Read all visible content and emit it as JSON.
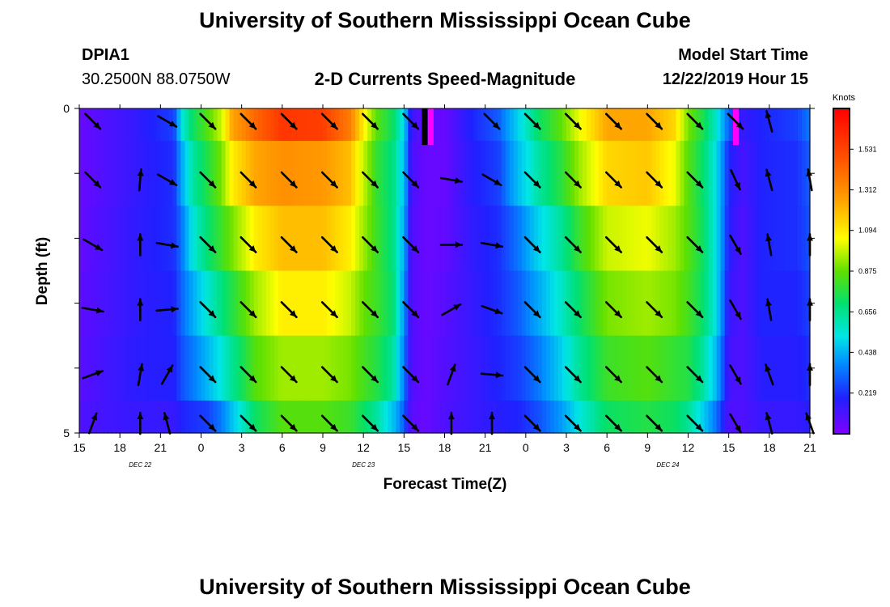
{
  "header": {
    "title": "University of Southern Mississippi Ocean Cube",
    "station_id": "DPIA1",
    "station_coords": "30.2500N 88.0750W",
    "product": "2-D Currents Speed-Magnitude",
    "model_start_label": "Model Start Time",
    "model_start_value": "12/22/2019 Hour 15"
  },
  "footer": {
    "title": "University of Southern Mississippi Ocean Cube"
  },
  "chart_data": {
    "type": "heatmap",
    "title": "2-D Currents Speed-Magnitude",
    "xlabel": "Forecast Time(Z)",
    "ylabel": "Depth (ft)",
    "x_tick_labels": [
      "15",
      "18",
      "21",
      "0",
      "3",
      "6",
      "9",
      "12",
      "15",
      "18",
      "21",
      "0",
      "3",
      "6",
      "9",
      "12",
      "15",
      "18",
      "21"
    ],
    "x_hours": [
      0,
      3,
      6,
      9,
      12,
      15,
      18,
      21,
      24,
      27,
      30,
      33,
      36,
      39,
      42,
      45,
      48,
      51,
      54
    ],
    "date_labels": [
      {
        "text": "DEC  22",
        "hour": 4.5
      },
      {
        "text": "DEC  23",
        "hour": 21
      },
      {
        "text": "DEC  24",
        "hour": 43.5
      }
    ],
    "y_tick_labels": [
      "0",
      "5"
    ],
    "depth_range": [
      0,
      5
    ],
    "depth_levels": 5,
    "colorbar": {
      "title": "Knots",
      "range": [
        0,
        1.75
      ],
      "tick_values": [
        "1.531",
        "1.312",
        "1.094",
        "0.875",
        "0.656",
        "0.438",
        "0.219"
      ],
      "colors": [
        "#8000ff",
        "#2020ff",
        "#0090ff",
        "#00e6e6",
        "#00e070",
        "#60e000",
        "#ffff00",
        "#ffa000",
        "#ff5000",
        "#ff0000"
      ]
    },
    "speed_columns": [
      {
        "hour": 0.0,
        "v": [
          0.05,
          0.05,
          0.06,
          0.07,
          0.08,
          0.1
        ]
      },
      {
        "hour": 4.0,
        "v": [
          0.15,
          0.15,
          0.16,
          0.16,
          0.17,
          0.15
        ]
      },
      {
        "hour": 7.0,
        "v": [
          0.25,
          0.22,
          0.22,
          0.2,
          0.19,
          0.15
        ]
      },
      {
        "hour": 7.6,
        "v": [
          0.6,
          0.45,
          0.35,
          0.32,
          0.28,
          0.2
        ]
      },
      {
        "hour": 8.4,
        "v": [
          0.8,
          0.7,
          0.6,
          0.45,
          0.35,
          0.22
        ]
      },
      {
        "hour": 9.5,
        "v": [
          0.95,
          0.85,
          0.78,
          0.62,
          0.48,
          0.25
        ]
      },
      {
        "hour": 10.5,
        "v": [
          1.1,
          1.0,
          0.9,
          0.75,
          0.6,
          0.35
        ]
      },
      {
        "hour": 11.3,
        "v": [
          1.35,
          1.2,
          1.0,
          0.85,
          0.72,
          0.5
        ]
      },
      {
        "hour": 13.0,
        "v": [
          1.5,
          1.35,
          1.2,
          1.05,
          0.95,
          0.8
        ]
      },
      {
        "hour": 15.0,
        "v": [
          1.62,
          1.4,
          1.3,
          1.2,
          1.05,
          0.95
        ]
      },
      {
        "hour": 18.0,
        "v": [
          1.6,
          1.38,
          1.3,
          1.2,
          1.05,
          0.95
        ]
      },
      {
        "hour": 20.0,
        "v": [
          1.45,
          1.3,
          1.2,
          1.1,
          1.0,
          0.9
        ]
      },
      {
        "hour": 21.0,
        "v": [
          1.2,
          1.1,
          1.05,
          0.98,
          0.92,
          0.8
        ]
      },
      {
        "hour": 22.0,
        "v": [
          0.95,
          0.88,
          0.9,
          0.9,
          0.85,
          0.7
        ]
      },
      {
        "hour": 23.2,
        "v": [
          0.8,
          0.75,
          0.75,
          0.78,
          0.7,
          0.5
        ]
      },
      {
        "hour": 24.0,
        "v": [
          0.55,
          0.5,
          0.45,
          0.4,
          0.35,
          0.3
        ]
      },
      {
        "hour": 24.5,
        "v": [
          0.15,
          0.12,
          0.1,
          0.1,
          0.1,
          0.08
        ]
      },
      {
        "hour": 25.5,
        "v": [
          0.05,
          0.05,
          0.05,
          0.05,
          0.05,
          0.05
        ]
      },
      {
        "hour": 27.0,
        "v": [
          0.05,
          0.05,
          0.06,
          0.08,
          0.09,
          0.1
        ]
      },
      {
        "hour": 29.0,
        "v": [
          0.2,
          0.18,
          0.16,
          0.15,
          0.14,
          0.14
        ]
      },
      {
        "hour": 31.0,
        "v": [
          0.3,
          0.25,
          0.22,
          0.22,
          0.2,
          0.18
        ]
      },
      {
        "hour": 32.5,
        "v": [
          0.55,
          0.5,
          0.35,
          0.3,
          0.25,
          0.2
        ]
      },
      {
        "hour": 34.0,
        "v": [
          0.8,
          0.7,
          0.55,
          0.45,
          0.35,
          0.28
        ]
      },
      {
        "hour": 35.5,
        "v": [
          0.95,
          0.85,
          0.7,
          0.62,
          0.52,
          0.4
        ]
      },
      {
        "hour": 37.0,
        "v": [
          1.15,
          1.05,
          0.9,
          0.8,
          0.72,
          0.6
        ]
      },
      {
        "hour": 39.0,
        "v": [
          1.35,
          1.25,
          1.1,
          1.0,
          0.9,
          0.8
        ]
      },
      {
        "hour": 42.0,
        "v": [
          1.35,
          1.28,
          1.15,
          1.05,
          0.95,
          0.85
        ]
      },
      {
        "hour": 44.0,
        "v": [
          1.25,
          1.15,
          1.05,
          1.0,
          0.88,
          0.8
        ]
      },
      {
        "hour": 45.0,
        "v": [
          1.0,
          0.95,
          0.95,
          0.92,
          0.85,
          0.72
        ]
      },
      {
        "hour": 46.0,
        "v": [
          0.85,
          0.8,
          0.82,
          0.8,
          0.72,
          0.55
        ]
      },
      {
        "hour": 47.0,
        "v": [
          0.65,
          0.6,
          0.6,
          0.6,
          0.5,
          0.35
        ]
      },
      {
        "hour": 48.0,
        "v": [
          0.3,
          0.2,
          0.18,
          0.15,
          0.12,
          0.1
        ]
      },
      {
        "hour": 49.0,
        "v": [
          0.15,
          0.12,
          0.1,
          0.1,
          0.1,
          0.1
        ]
      },
      {
        "hour": 50.5,
        "v": [
          0.2,
          0.2,
          0.2,
          0.2,
          0.18,
          0.15
        ]
      },
      {
        "hour": 53.0,
        "v": [
          0.25,
          0.22,
          0.22,
          0.2,
          0.18,
          0.15
        ]
      },
      {
        "hour": 54.0,
        "v": [
          0.35,
          0.3,
          0.28,
          0.25,
          0.22,
          0.18
        ]
      }
    ],
    "missing_markers": [
      {
        "hour": 25.5,
        "depth_to": 0.5,
        "color": "#000000"
      },
      {
        "hour": 25.95,
        "depth_to": 0.5,
        "color": "#ff00ff"
      },
      {
        "hour": 48.5,
        "depth_to": 0.5,
        "color": "#ff00ff"
      }
    ],
    "vector_depths": [
      0.2,
      1.1,
      2.1,
      3.1,
      4.1,
      4.85
    ],
    "vectors": [
      {
        "hour": 1.0,
        "dirs": [
          135,
          135,
          120,
          100,
          70,
          20
        ]
      },
      {
        "hour": 3.0,
        "dirs": null
      },
      {
        "hour": 4.5,
        "dirs": [
          null,
          5,
          0,
          0,
          10,
          0
        ]
      },
      {
        "hour": 6.5,
        "dirs": [
          120,
          120,
          100,
          85,
          30,
          -15
        ]
      },
      {
        "hour": 9.5,
        "dirs": [
          135,
          135,
          135,
          135,
          135,
          135
        ]
      },
      {
        "hour": 12.5,
        "dirs": [
          135,
          135,
          135,
          135,
          135,
          135
        ]
      },
      {
        "hour": 15.5,
        "dirs": [
          135,
          135,
          135,
          135,
          135,
          135
        ]
      },
      {
        "hour": 18.5,
        "dirs": [
          135,
          135,
          135,
          135,
          135,
          135
        ]
      },
      {
        "hour": 21.5,
        "dirs": [
          135,
          135,
          135,
          135,
          135,
          135
        ]
      },
      {
        "hour": 24.5,
        "dirs": [
          135,
          135,
          135,
          135,
          135,
          135
        ]
      },
      {
        "hour": 27.5,
        "dirs": [
          null,
          100,
          90,
          60,
          20,
          0
        ]
      },
      {
        "hour": 30.5,
        "dirs": [
          135,
          120,
          100,
          110,
          95,
          0
        ]
      },
      {
        "hour": 33.5,
        "dirs": [
          135,
          135,
          135,
          135,
          135,
          135
        ]
      },
      {
        "hour": 36.5,
        "dirs": [
          135,
          135,
          135,
          135,
          135,
          135
        ]
      },
      {
        "hour": 39.5,
        "dirs": [
          135,
          135,
          135,
          135,
          135,
          135
        ]
      },
      {
        "hour": 42.5,
        "dirs": [
          135,
          135,
          135,
          135,
          135,
          135
        ]
      },
      {
        "hour": 45.5,
        "dirs": [
          135,
          135,
          135,
          135,
          135,
          135
        ]
      },
      {
        "hour": 48.5,
        "dirs": [
          135,
          155,
          150,
          150,
          150,
          150
        ]
      },
      {
        "hour": 51.0,
        "dirs": [
          -15,
          -15,
          -10,
          -10,
          -20,
          -15
        ]
      },
      {
        "hour": 54.0,
        "dirs": [
          null,
          -10,
          0,
          0,
          0,
          -20
        ]
      }
    ]
  }
}
